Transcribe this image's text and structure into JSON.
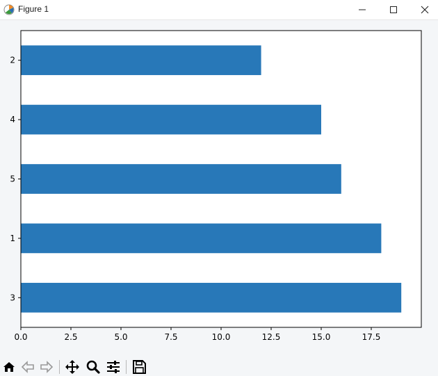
{
  "window": {
    "title": "Figure 1"
  },
  "toolbar": {
    "icons": [
      "home-icon",
      "back-icon",
      "forward-icon",
      "pan-icon",
      "zoom-icon",
      "configure-subplots-icon",
      "save-icon"
    ]
  },
  "colors": {
    "bar": "#2878b8",
    "axis": "#000000",
    "background": "#ffffff"
  },
  "chart_data": {
    "type": "bar",
    "orientation": "horizontal",
    "categories": [
      "2",
      "4",
      "5",
      "1",
      "3"
    ],
    "values": [
      12,
      15,
      16,
      18,
      19
    ],
    "xlim": [
      0,
      20
    ],
    "xticks": [
      "0.0",
      "2.5",
      "5.0",
      "7.5",
      "10.0",
      "12.5",
      "15.0",
      "17.5"
    ],
    "xtick_values": [
      0,
      2.5,
      5,
      7.5,
      10,
      12.5,
      15,
      17.5
    ],
    "grid": false,
    "title": "",
    "xlabel": "",
    "ylabel": ""
  }
}
